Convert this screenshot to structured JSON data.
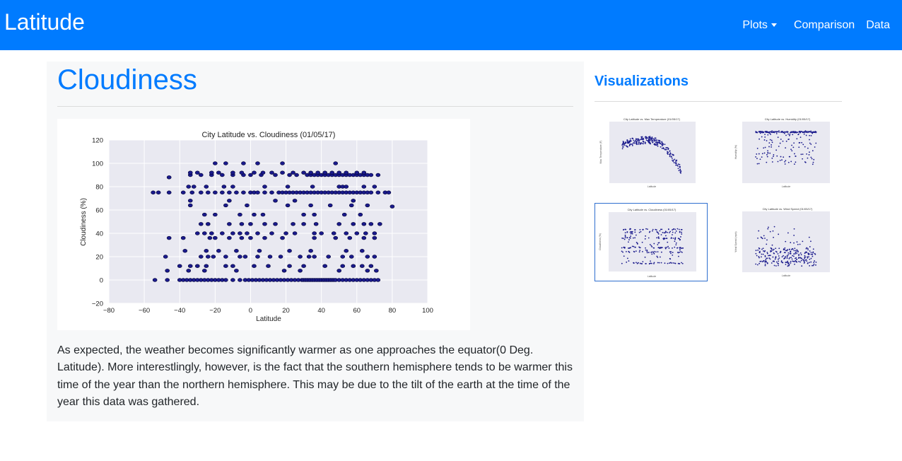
{
  "navbar": {
    "brand": "Latitude",
    "links": {
      "plots": "Plots",
      "comparison": "Comparison",
      "data": "Data"
    }
  },
  "main": {
    "title": "Cloudiness",
    "description": "As expected, the weather becomes significantly warmer as one approaches the equator(0 Deg. Latitude). More interestlingly, however, is the fact that the southern hemisphere tends to be warmer this time of the year than the northern hemisphere. This may be due to the tilt of the earth at the time of the year this data was gathered."
  },
  "sidebar": {
    "title": "Visualizations",
    "thumbnails": [
      {
        "title": "City Latitude vs. Max Temperature (01/05/17)",
        "xlabel": "Latitude",
        "ylabel": "Max Temperature (F)",
        "active": false
      },
      {
        "title": "City Latitude vs. Humidity (01/05/17)",
        "xlabel": "Latitude",
        "ylabel": "Humidity (%)",
        "active": false
      },
      {
        "title": "City Latitude vs. Cloudiness (01/05/17)",
        "xlabel": "Latitude",
        "ylabel": "Cloudiness (%)",
        "active": true
      },
      {
        "title": "City Latitude vs. Wind Speed (01/05/17)",
        "xlabel": "Latitude",
        "ylabel": "Wind Speed (mph)",
        "active": false
      }
    ]
  },
  "chart_data": {
    "type": "scatter",
    "title": "City Latitude vs. Cloudiness (01/05/17)",
    "xlabel": "Latitude",
    "ylabel": "Cloudiness (%)",
    "xlim": [
      -80,
      100
    ],
    "ylim": [
      -20,
      120
    ],
    "xticks": [
      -80,
      -60,
      -40,
      -20,
      0,
      20,
      40,
      60,
      80,
      100
    ],
    "yticks": [
      -20,
      0,
      20,
      40,
      60,
      80,
      100,
      120
    ],
    "grid": true,
    "point_color": "#1a1a8c",
    "points": [
      [
        -54,
        0
      ],
      [
        -47,
        0
      ],
      [
        -40,
        0
      ],
      [
        -38,
        0
      ],
      [
        -36,
        0
      ],
      [
        -34,
        0
      ],
      [
        -32,
        0
      ],
      [
        -30,
        0
      ],
      [
        -28,
        0
      ],
      [
        -26,
        0
      ],
      [
        -24,
        0
      ],
      [
        -22,
        0
      ],
      [
        -20,
        0
      ],
      [
        -18,
        0
      ],
      [
        -16,
        0
      ],
      [
        -14,
        0
      ],
      [
        -10,
        0
      ],
      [
        -6,
        0
      ],
      [
        -3,
        0
      ],
      [
        -1,
        0
      ],
      [
        1,
        0
      ],
      [
        3,
        0
      ],
      [
        5,
        0
      ],
      [
        7,
        0
      ],
      [
        9,
        0
      ],
      [
        11,
        0
      ],
      [
        13,
        0
      ],
      [
        15,
        0
      ],
      [
        17,
        0
      ],
      [
        19,
        0
      ],
      [
        21,
        0
      ],
      [
        23,
        0
      ],
      [
        25,
        0
      ],
      [
        27,
        0
      ],
      [
        29,
        0
      ],
      [
        30,
        0
      ],
      [
        31,
        0
      ],
      [
        32,
        0
      ],
      [
        33,
        0
      ],
      [
        34,
        0
      ],
      [
        35,
        0
      ],
      [
        36,
        0
      ],
      [
        37,
        0
      ],
      [
        38,
        0
      ],
      [
        39,
        0
      ],
      [
        40,
        0
      ],
      [
        41,
        0
      ],
      [
        42,
        0
      ],
      [
        43,
        0
      ],
      [
        44,
        0
      ],
      [
        45,
        0
      ],
      [
        46,
        0
      ],
      [
        47,
        0
      ],
      [
        48,
        0
      ],
      [
        50,
        0
      ],
      [
        52,
        0
      ],
      [
        54,
        0
      ],
      [
        56,
        0
      ],
      [
        58,
        0
      ],
      [
        60,
        0
      ],
      [
        62,
        0
      ],
      [
        64,
        0
      ],
      [
        66,
        0
      ],
      [
        68,
        0
      ],
      [
        70,
        0
      ],
      [
        72,
        0
      ],
      [
        -47,
        8
      ],
      [
        -35,
        8
      ],
      [
        -26,
        8
      ],
      [
        -8,
        8
      ],
      [
        19,
        8
      ],
      [
        28,
        8
      ],
      [
        50,
        8
      ],
      [
        66,
        8
      ],
      [
        71,
        8
      ],
      [
        -40,
        12
      ],
      [
        -34,
        12
      ],
      [
        -30,
        12
      ],
      [
        -25,
        12
      ],
      [
        -14,
        12
      ],
      [
        -10,
        12
      ],
      [
        2,
        12
      ],
      [
        10,
        12
      ],
      [
        22,
        12
      ],
      [
        30,
        12
      ],
      [
        42,
        12
      ],
      [
        52,
        12
      ],
      [
        58,
        12
      ],
      [
        63,
        12
      ],
      [
        68,
        12
      ],
      [
        -48,
        20
      ],
      [
        -28,
        20
      ],
      [
        -24,
        20
      ],
      [
        -21,
        20
      ],
      [
        -14,
        20
      ],
      [
        -6,
        20
      ],
      [
        -3,
        20
      ],
      [
        4,
        20
      ],
      [
        11,
        20
      ],
      [
        17,
        20
      ],
      [
        28,
        20
      ],
      [
        33,
        20
      ],
      [
        36,
        20
      ],
      [
        44,
        20
      ],
      [
        52,
        20
      ],
      [
        57,
        20
      ],
      [
        66,
        20
      ],
      [
        70,
        20
      ],
      [
        -37,
        25
      ],
      [
        -25,
        25
      ],
      [
        -18,
        25
      ],
      [
        -8,
        25
      ],
      [
        5,
        25
      ],
      [
        22,
        25
      ],
      [
        34,
        25
      ],
      [
        54,
        25
      ],
      [
        63,
        25
      ],
      [
        -46,
        36
      ],
      [
        -38,
        36
      ],
      [
        -23,
        36
      ],
      [
        -20,
        36
      ],
      [
        -12,
        36
      ],
      [
        -5,
        36
      ],
      [
        0,
        36
      ],
      [
        8,
        36
      ],
      [
        18,
        36
      ],
      [
        36,
        36
      ],
      [
        48,
        36
      ],
      [
        56,
        36
      ],
      [
        64,
        36
      ],
      [
        70,
        36
      ],
      [
        -30,
        40
      ],
      [
        -26,
        40
      ],
      [
        -22,
        40
      ],
      [
        -16,
        40
      ],
      [
        -10,
        40
      ],
      [
        -6,
        40
      ],
      [
        -2,
        40
      ],
      [
        4,
        40
      ],
      [
        12,
        40
      ],
      [
        20,
        40
      ],
      [
        25,
        40
      ],
      [
        36,
        40
      ],
      [
        40,
        40
      ],
      [
        47,
        40
      ],
      [
        54,
        40
      ],
      [
        60,
        40
      ],
      [
        65,
        40
      ],
      [
        70,
        40
      ],
      [
        -28,
        48
      ],
      [
        -24,
        48
      ],
      [
        -12,
        48
      ],
      [
        -5,
        48
      ],
      [
        0,
        48
      ],
      [
        8,
        48
      ],
      [
        14,
        48
      ],
      [
        24,
        48
      ],
      [
        30,
        48
      ],
      [
        37,
        48
      ],
      [
        50,
        48
      ],
      [
        58,
        48
      ],
      [
        64,
        48
      ],
      [
        68,
        48
      ],
      [
        73,
        48
      ],
      [
        -26,
        56
      ],
      [
        -20,
        56
      ],
      [
        -6,
        56
      ],
      [
        2,
        56
      ],
      [
        7,
        56
      ],
      [
        30,
        56
      ],
      [
        36,
        56
      ],
      [
        53,
        56
      ],
      [
        62,
        56
      ],
      [
        -34,
        64
      ],
      [
        -14,
        64
      ],
      [
        -2,
        64
      ],
      [
        21,
        64
      ],
      [
        34,
        64
      ],
      [
        45,
        64
      ],
      [
        57,
        64
      ],
      [
        66,
        64
      ],
      [
        -34,
        68
      ],
      [
        -12,
        68
      ],
      [
        14,
        68
      ],
      [
        25,
        68
      ],
      [
        58,
        68
      ],
      [
        -55,
        75
      ],
      [
        -52,
        75
      ],
      [
        -46,
        75
      ],
      [
        -38,
        75
      ],
      [
        -33,
        75
      ],
      [
        -28,
        75
      ],
      [
        -24,
        75
      ],
      [
        -20,
        75
      ],
      [
        -16,
        75
      ],
      [
        -12,
        75
      ],
      [
        -8,
        75
      ],
      [
        -4,
        75
      ],
      [
        0,
        75
      ],
      [
        2,
        75
      ],
      [
        4,
        75
      ],
      [
        8,
        75
      ],
      [
        12,
        75
      ],
      [
        16,
        75
      ],
      [
        18,
        75
      ],
      [
        20,
        75
      ],
      [
        22,
        75
      ],
      [
        24,
        75
      ],
      [
        26,
        75
      ],
      [
        28,
        75
      ],
      [
        30,
        75
      ],
      [
        32,
        75
      ],
      [
        34,
        75
      ],
      [
        36,
        75
      ],
      [
        38,
        75
      ],
      [
        40,
        75
      ],
      [
        42,
        75
      ],
      [
        44,
        75
      ],
      [
        46,
        75
      ],
      [
        48,
        75
      ],
      [
        50,
        75
      ],
      [
        52,
        75
      ],
      [
        54,
        75
      ],
      [
        56,
        75
      ],
      [
        58,
        75
      ],
      [
        60,
        75
      ],
      [
        62,
        75
      ],
      [
        64,
        75
      ],
      [
        66,
        75
      ],
      [
        68,
        75
      ],
      [
        72,
        75
      ],
      [
        76,
        75
      ],
      [
        -35,
        80
      ],
      [
        -32,
        80
      ],
      [
        -25,
        80
      ],
      [
        -15,
        80
      ],
      [
        -10,
        80
      ],
      [
        8,
        80
      ],
      [
        21,
        80
      ],
      [
        35,
        80
      ],
      [
        50,
        80
      ],
      [
        52,
        80
      ],
      [
        54,
        80
      ],
      [
        64,
        80
      ],
      [
        70,
        80
      ],
      [
        -34,
        90
      ],
      [
        -28,
        90
      ],
      [
        -22,
        90
      ],
      [
        -16,
        90
      ],
      [
        -10,
        90
      ],
      [
        -4,
        90
      ],
      [
        0,
        90
      ],
      [
        6,
        90
      ],
      [
        14,
        90
      ],
      [
        22,
        90
      ],
      [
        26,
        90
      ],
      [
        32,
        90
      ],
      [
        34,
        90
      ],
      [
        36,
        90
      ],
      [
        38,
        90
      ],
      [
        40,
        90
      ],
      [
        42,
        90
      ],
      [
        44,
        90
      ],
      [
        46,
        90
      ],
      [
        48,
        90
      ],
      [
        50,
        90
      ],
      [
        52,
        90
      ],
      [
        54,
        90
      ],
      [
        56,
        90
      ],
      [
        58,
        90
      ],
      [
        60,
        90
      ],
      [
        62,
        90
      ],
      [
        64,
        90
      ],
      [
        66,
        90
      ],
      [
        68,
        90
      ],
      [
        72,
        90
      ],
      [
        -34,
        92
      ],
      [
        -30,
        92
      ],
      [
        -22,
        92
      ],
      [
        -18,
        92
      ],
      [
        -10,
        92
      ],
      [
        -5,
        92
      ],
      [
        2,
        92
      ],
      [
        7,
        92
      ],
      [
        12,
        92
      ],
      [
        18,
        92
      ],
      [
        24,
        92
      ],
      [
        30,
        92
      ],
      [
        34,
        92
      ],
      [
        38,
        92
      ],
      [
        42,
        92
      ],
      [
        46,
        92
      ],
      [
        50,
        92
      ],
      [
        54,
        92
      ],
      [
        60,
        92
      ],
      [
        64,
        92
      ],
      [
        -46,
        88
      ],
      [
        -20,
        100
      ],
      [
        -14,
        100
      ],
      [
        -4,
        100
      ],
      [
        4,
        100
      ],
      [
        18,
        100
      ],
      [
        48,
        100
      ],
      [
        80,
        63
      ],
      [
        78,
        75
      ]
    ]
  }
}
